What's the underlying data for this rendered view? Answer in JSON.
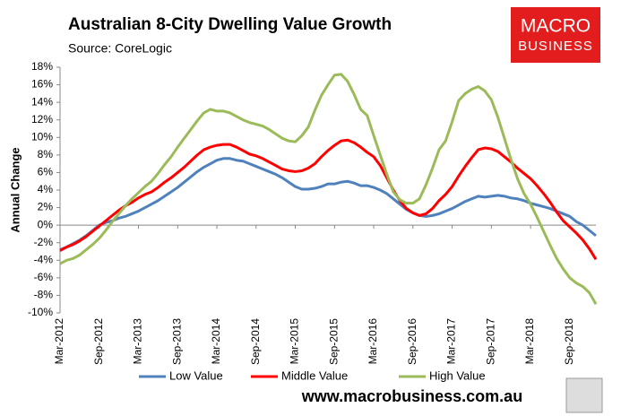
{
  "chart_data": {
    "type": "line",
    "title": "Australian 8-City Dwelling Value Growth",
    "subtitle": "Source: CoreLogic",
    "logo": [
      "MACRO",
      "BUSINESS"
    ],
    "footer": "www.macrobusiness.com.au",
    "y_label": "Annual Change",
    "categories": [
      "Mar-2012",
      null,
      null,
      null,
      null,
      null,
      "Sep-2012",
      null,
      null,
      null,
      null,
      null,
      "Mar-2013",
      null,
      null,
      null,
      null,
      null,
      "Sep-2013",
      null,
      null,
      null,
      null,
      null,
      "Mar-2014",
      null,
      null,
      null,
      null,
      null,
      "Sep-2014",
      null,
      null,
      null,
      null,
      null,
      "Mar-2015",
      null,
      null,
      null,
      null,
      null,
      "Sep-2015",
      null,
      null,
      null,
      null,
      null,
      "Mar-2016",
      null,
      null,
      null,
      null,
      null,
      "Sep-2016",
      null,
      null,
      null,
      null,
      null,
      "Mar-2017",
      null,
      null,
      null,
      null,
      null,
      "Sep-2017",
      null,
      null,
      null,
      null,
      null,
      "Mar-2018",
      null,
      null,
      null,
      null,
      null,
      "Sep-2018",
      null,
      null,
      null,
      null
    ],
    "series": [
      {
        "name": "Low Value",
        "color": "#4f81bd",
        "values": [
          -2.8,
          -2.5,
          -2.1,
          -1.7,
          -1.2,
          -0.6,
          0,
          0.3,
          0.5,
          0.8,
          1.0,
          1.3,
          1.6,
          2.0,
          2.4,
          2.8,
          3.3,
          3.8,
          4.3,
          4.9,
          5.5,
          6.1,
          6.6,
          7.0,
          7.4,
          7.6,
          7.6,
          7.4,
          7.3,
          7.0,
          6.7,
          6.4,
          6.1,
          5.8,
          5.4,
          4.9,
          4.4,
          4.1,
          4.1,
          4.2,
          4.4,
          4.7,
          4.7,
          4.9,
          5.0,
          4.8,
          4.5,
          4.5,
          4.3,
          4.0,
          3.6,
          3.0,
          2.4,
          1.8,
          1.4,
          1.1,
          1.0,
          1.1,
          1.3,
          1.6,
          1.9,
          2.3,
          2.7,
          3.0,
          3.3,
          3.2,
          3.3,
          3.4,
          3.3,
          3.1,
          3.0,
          2.8,
          2.5,
          2.3,
          2.1,
          1.9,
          1.6,
          1.3,
          1.0,
          0.4,
          0,
          -0.6,
          -1.2
        ]
      },
      {
        "name": "Middle Value",
        "color": "#ff0000",
        "values": [
          -2.9,
          -2.5,
          -2.2,
          -1.8,
          -1.3,
          -0.7,
          -0.1,
          0.5,
          1.1,
          1.7,
          2.2,
          2.6,
          3.1,
          3.5,
          3.8,
          4.3,
          4.9,
          5.4,
          6.0,
          6.6,
          7.3,
          8.0,
          8.6,
          8.9,
          9.1,
          9.2,
          9.2,
          8.9,
          8.5,
          8.1,
          7.9,
          7.6,
          7.2,
          6.8,
          6.4,
          6.2,
          6.1,
          6.2,
          6.5,
          7.0,
          7.8,
          8.5,
          9.1,
          9.6,
          9.7,
          9.4,
          8.9,
          8.3,
          7.8,
          6.8,
          5.4,
          4.0,
          2.8,
          1.9,
          1.4,
          1.1,
          1.3,
          1.9,
          2.8,
          3.5,
          4.4,
          5.6,
          6.7,
          7.7,
          8.6,
          8.8,
          8.7,
          8.4,
          7.8,
          7.2,
          6.5,
          5.9,
          5.3,
          4.5,
          3.6,
          2.6,
          1.5,
          0.5,
          -0.2,
          -0.9,
          -1.7,
          -2.7,
          -3.9
        ]
      },
      {
        "name": "High Value",
        "color": "#9bbb59",
        "values": [
          -4.4,
          -4.0,
          -3.8,
          -3.4,
          -2.8,
          -2.2,
          -1.5,
          -0.6,
          0.4,
          1.3,
          2.2,
          3.0,
          3.7,
          4.4,
          5.0,
          5.9,
          6.9,
          7.8,
          8.9,
          9.9,
          10.9,
          11.9,
          12.8,
          13.2,
          13.0,
          13.0,
          12.8,
          12.4,
          12.0,
          11.7,
          11.5,
          11.3,
          10.9,
          10.4,
          9.9,
          9.6,
          9.5,
          10.2,
          11.2,
          13.1,
          14.8,
          16.0,
          17.1,
          17.2,
          16.4,
          14.9,
          13.2,
          12.5,
          10.2,
          8.0,
          5.8,
          3.8,
          2.9,
          2.5,
          2.5,
          3.0,
          4.6,
          6.5,
          8.6,
          9.6,
          11.8,
          14.2,
          15.0,
          15.5,
          15.8,
          15.3,
          14.3,
          12.3,
          9.9,
          7.5,
          5.3,
          3.6,
          2.4,
          0.9,
          -0.7,
          -2.3,
          -3.8,
          -5.0,
          -6.0,
          -6.6,
          -7.0,
          -7.7,
          -9.0
        ]
      }
    ],
    "ylim": [
      -10,
      18
    ],
    "yticks": [
      {
        "value": -10,
        "label": "-10%"
      },
      {
        "value": -8,
        "label": "-8%"
      },
      {
        "value": -6,
        "label": "-6%"
      },
      {
        "value": -4,
        "label": "-4%"
      },
      {
        "value": -2,
        "label": "-2%"
      },
      {
        "value": 0,
        "label": "0%"
      },
      {
        "value": 2,
        "label": "2%"
      },
      {
        "value": 4,
        "label": "4%"
      },
      {
        "value": 6,
        "label": "6%"
      },
      {
        "value": 8,
        "label": "8%"
      },
      {
        "value": 10,
        "label": "10%"
      },
      {
        "value": 12,
        "label": "12%"
      },
      {
        "value": 14,
        "label": "14%"
      },
      {
        "value": 16,
        "label": "16%"
      },
      {
        "value": 18,
        "label": "18%"
      }
    ],
    "grid": false,
    "legend": "bottom"
  }
}
